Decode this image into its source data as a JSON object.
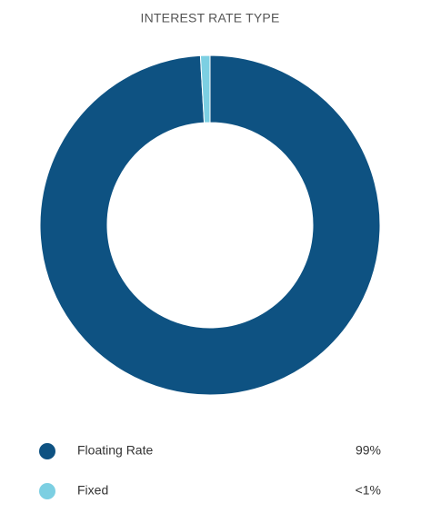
{
  "chart_data": {
    "type": "donut",
    "title": "INTEREST RATE TYPE",
    "categories": [
      "Floating Rate",
      "Fixed"
    ],
    "values": [
      99,
      0.9
    ],
    "value_labels": [
      "99%",
      "<1%"
    ],
    "colors": [
      "#0e5282",
      "#7ccfe2"
    ]
  }
}
